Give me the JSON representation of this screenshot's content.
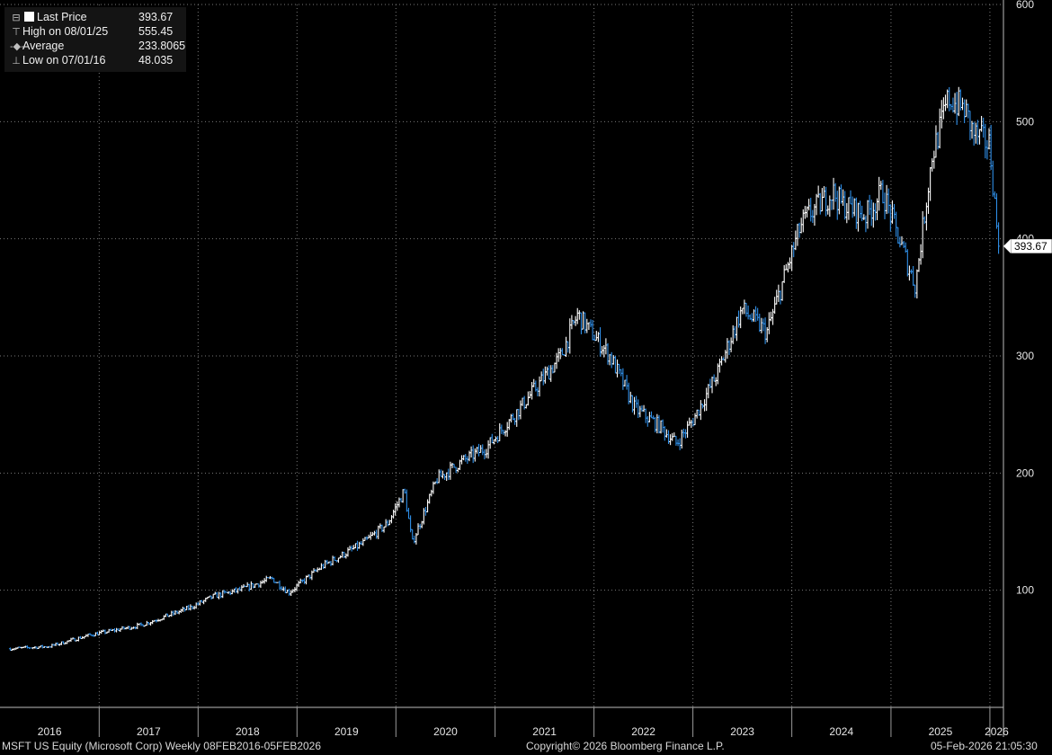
{
  "legend": {
    "last_price_label": "Last Price",
    "last_price_value": "393.67",
    "high_label": "High on 08/01/25",
    "high_value": "555.45",
    "average_label": "Average",
    "average_value": "233.8065",
    "low_label": "Low on 07/01/16",
    "low_value": "48.035"
  },
  "last_price_tag": "393.67",
  "footer": {
    "left": "MSFT US Equity (Microsoft Corp) Weekly 08FEB2016-05FEB2026",
    "center": "Copyright© 2026 Bloomberg Finance L.P.",
    "right": "05-Feb-2026 21:05:30"
  },
  "colors": {
    "background": "#000000",
    "up": "#ffffff",
    "down": "#2f8fe8",
    "grid": "#7a7a7a"
  },
  "chart_data": {
    "type": "line",
    "style": "weekly bars",
    "x_tick_labels": [
      "2016",
      "2017",
      "2018",
      "2019",
      "2020",
      "2021",
      "2022",
      "2023",
      "2024",
      "2025",
      "2026"
    ],
    "y_tick_labels": [
      "100",
      "200",
      "300",
      "400",
      "500",
      "600"
    ],
    "ylim": [
      0,
      600
    ],
    "grid": true,
    "x": [
      "2016-02",
      "2016-07",
      "2016-12",
      "2017-06",
      "2017-12",
      "2018-03",
      "2018-06",
      "2018-10",
      "2018-12",
      "2019-04",
      "2019-09",
      "2019-12",
      "2020-02",
      "2020-03",
      "2020-06",
      "2020-09",
      "2020-12",
      "2021-04",
      "2021-09",
      "2021-11",
      "2022-03",
      "2022-06",
      "2022-09",
      "2022-11",
      "2023-01",
      "2023-04",
      "2023-07",
      "2023-10",
      "2024-02",
      "2024-03",
      "2024-06",
      "2024-07",
      "2024-10",
      "2024-12",
      "2025-03",
      "2025-04",
      "2025-06",
      "2025-08",
      "2025-10",
      "2025-11",
      "2026-01",
      "2026-02"
    ],
    "y": [
      50,
      52,
      62,
      70,
      85,
      95,
      100,
      110,
      98,
      120,
      140,
      157,
      185,
      140,
      195,
      210,
      222,
      255,
      300,
      335,
      300,
      255,
      240,
      225,
      245,
      285,
      340,
      320,
      410,
      420,
      440,
      430,
      420,
      440,
      380,
      360,
      470,
      520,
      510,
      490,
      480,
      393.67
    ]
  }
}
